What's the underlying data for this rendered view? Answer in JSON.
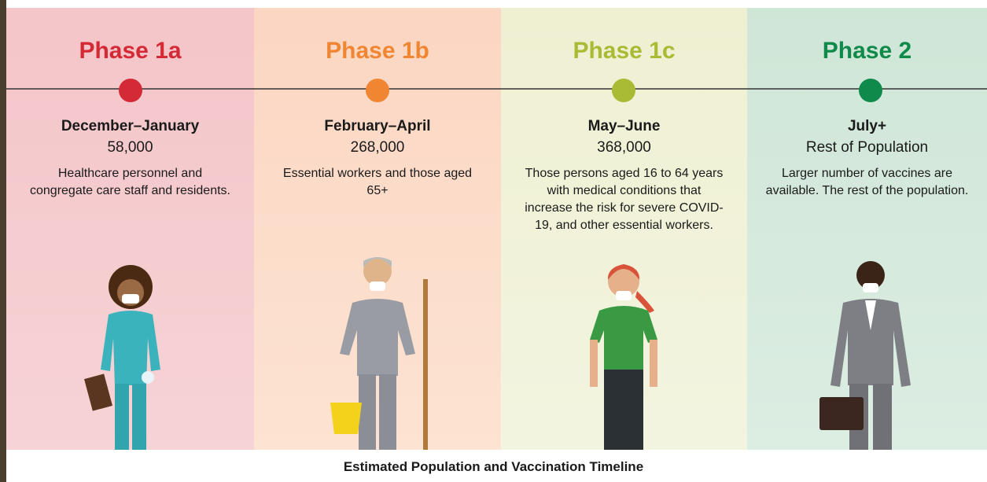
{
  "phases": [
    {
      "title": "Phase 1a",
      "period": "December–January",
      "count": "58,000",
      "description": "Healthcare personnel and congregate care staff and residents."
    },
    {
      "title": "Phase 1b",
      "period": "February–April",
      "count": "268,000",
      "description": "Essential workers and those aged 65+"
    },
    {
      "title": "Phase 1c",
      "period": "May–June",
      "count": "368,000",
      "description": "Those persons aged 16 to 64 years with medical conditions that increase the risk for severe COVID-19, and other essential workers."
    },
    {
      "title": "Phase 2",
      "period": "July+",
      "count": "Rest of Population",
      "description": "Larger number of vaccines are available. The rest of the population."
    }
  ],
  "caption": "Estimated Population and Vaccination Timeline"
}
